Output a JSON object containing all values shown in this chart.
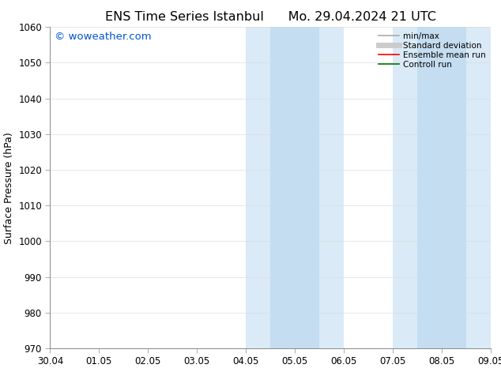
{
  "title_left": "ENS Time Series Istanbul",
  "title_right": "Mo. 29.04.2024 21 UTC",
  "ylabel": "Surface Pressure (hPa)",
  "ylim": [
    970,
    1060
  ],
  "yticks": [
    970,
    980,
    990,
    1000,
    1010,
    1020,
    1030,
    1040,
    1050,
    1060
  ],
  "xtick_labels": [
    "30.04",
    "01.05",
    "02.05",
    "03.05",
    "04.05",
    "05.05",
    "06.05",
    "07.05",
    "08.05",
    "09.05"
  ],
  "xmin": 0,
  "xmax": 9,
  "shaded_outer": [
    {
      "x_start": 4.0,
      "x_end": 6.0,
      "color": "#daeaf7"
    },
    {
      "x_start": 7.0,
      "x_end": 9.0,
      "color": "#daeaf7"
    }
  ],
  "shaded_inner": [
    {
      "x_start": 4.5,
      "x_end": 5.5,
      "color": "#c5ddf0"
    },
    {
      "x_start": 7.5,
      "x_end": 8.5,
      "color": "#c5ddf0"
    }
  ],
  "watermark": "© woweather.com",
  "watermark_color": "#0055cc",
  "background_color": "#ffffff",
  "legend_items": [
    {
      "label": "min/max",
      "color": "#aaaaaa",
      "lw": 1.2
    },
    {
      "label": "Standard deviation",
      "color": "#cccccc",
      "lw": 5
    },
    {
      "label": "Ensemble mean run",
      "color": "#ff0000",
      "lw": 1.2
    },
    {
      "label": "Controll run",
      "color": "#007700",
      "lw": 1.2
    }
  ],
  "title_fontsize": 11.5,
  "ylabel_fontsize": 9,
  "tick_fontsize": 8.5,
  "watermark_fontsize": 9.5,
  "legend_fontsize": 7.5
}
